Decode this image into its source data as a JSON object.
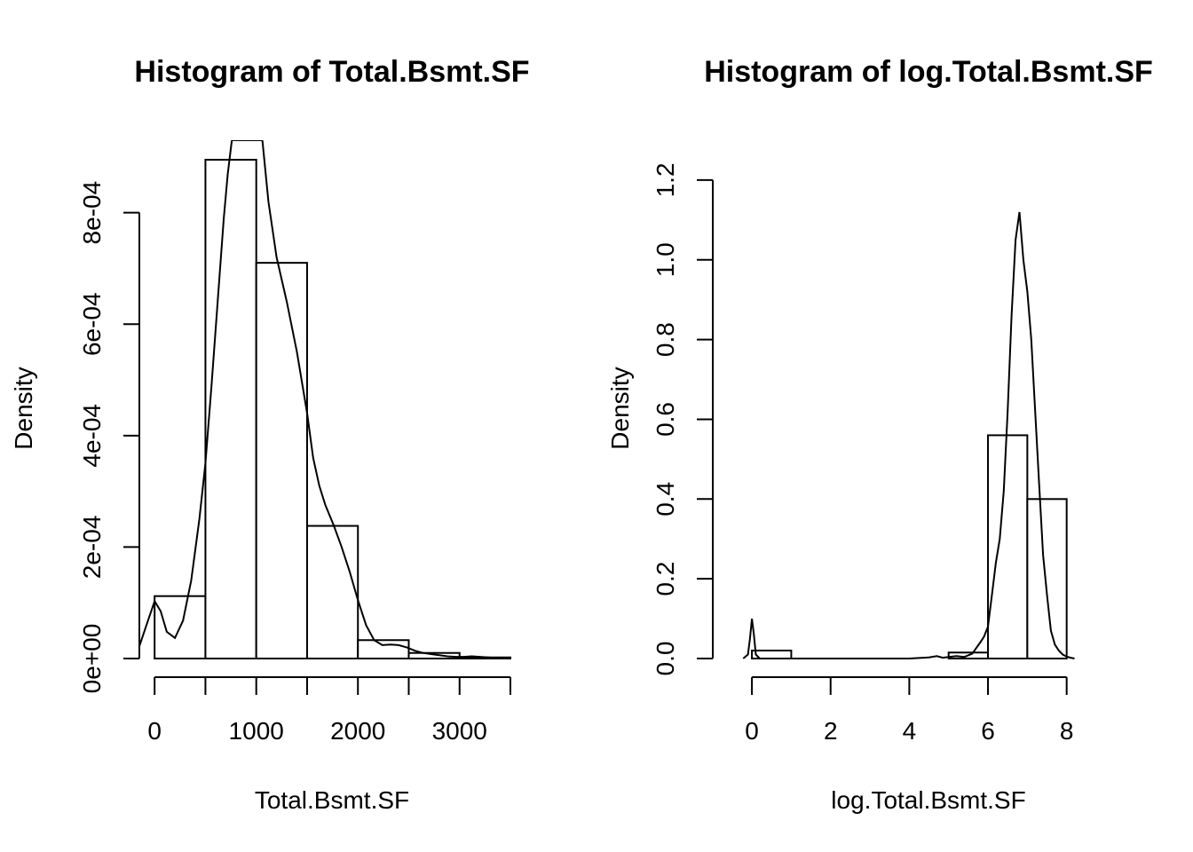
{
  "chart_data": [
    {
      "type": "bar",
      "title": "Histogram of Total.Bsmt.SF",
      "xlabel": "Total.Bsmt.SF",
      "ylabel": "Density",
      "xlim": [
        -150,
        3500
      ],
      "ylim": [
        0,
        0.00093
      ],
      "x_ticks": [
        0,
        1000,
        2000,
        3000,
        3500
      ],
      "x_tick_labels": [
        "0",
        "1000",
        "2000",
        "3000",
        ""
      ],
      "x_minor_ticks": [
        500,
        1500,
        2500
      ],
      "y_ticks": [
        0,
        0.0002,
        0.0004,
        0.0006,
        0.0008
      ],
      "y_tick_labels": [
        "0e+00",
        "2e-04",
        "4e-04",
        "6e-04",
        "8e-04"
      ],
      "bins": [
        {
          "x0": 0,
          "x1": 500,
          "density": 0.000112
        },
        {
          "x0": 500,
          "x1": 1000,
          "density": 0.000895
        },
        {
          "x0": 1000,
          "x1": 1500,
          "density": 0.00071
        },
        {
          "x0": 1500,
          "x1": 2000,
          "density": 0.000238
        },
        {
          "x0": 2000,
          "x1": 2500,
          "density": 3.3e-05
        },
        {
          "x0": 2500,
          "x1": 3000,
          "density": 1e-05
        },
        {
          "x0": 3000,
          "x1": 3500,
          "density": 2e-06
        }
      ],
      "density_curve": {
        "x": [
          -150,
          -80,
          0,
          60,
          120,
          200,
          280,
          360,
          440,
          500,
          560,
          620,
          680,
          720,
          760,
          1060,
          1120,
          1200,
          1300,
          1400,
          1500,
          1560,
          1620,
          1680,
          1760,
          1840,
          1920,
          2000,
          2080,
          2160,
          2240,
          2320,
          2400,
          2480,
          2560,
          2640,
          2720,
          2800,
          2880,
          2960,
          3040,
          3120,
          3200,
          3280,
          3360,
          3440,
          3500
        ],
        "y": [
          2.2e-05,
          6e-05,
          0.000103,
          8.5e-05,
          4.8e-05,
          3.7e-05,
          6.8e-05,
          0.00014,
          0.00025,
          0.00035,
          0.00049,
          0.00064,
          0.00079,
          0.00087,
          0.00093,
          0.00093,
          0.00082,
          0.00072,
          0.00064,
          0.00055,
          0.00044,
          0.00036,
          0.00031,
          0.000275,
          0.00024,
          0.0002,
          0.000155,
          0.000105,
          6e-05,
          3.3e-05,
          2.4e-05,
          2.5e-05,
          2.4e-05,
          2e-05,
          1.4e-05,
          1e-05,
          8e-06,
          6e-06,
          4e-06,
          3e-06,
          3e-06,
          4e-06,
          3e-06,
          2e-06,
          1e-06,
          1e-06,
          1e-06
        ]
      }
    },
    {
      "type": "bar",
      "title": "Histogram of log.Total.Bsmt.SF",
      "xlabel": "log.Total.Bsmt.SF",
      "ylabel": "Density",
      "xlim": [
        -0.25,
        9.0
      ],
      "ylim": [
        0,
        1.3
      ],
      "x_ticks": [
        0,
        2,
        4,
        6,
        8
      ],
      "x_tick_labels": [
        "0",
        "2",
        "4",
        "6",
        "8"
      ],
      "x_minor_ticks": [],
      "y_ticks": [
        0,
        0.2,
        0.4,
        0.6,
        0.8,
        1.0,
        1.2
      ],
      "y_tick_labels": [
        "0.0",
        "0.2",
        "0.4",
        "0.6",
        "0.8",
        "1.0",
        "1.2"
      ],
      "bins": [
        {
          "x0": 0,
          "x1": 1,
          "density": 0.02
        },
        {
          "x0": 1,
          "x1": 2,
          "density": 0
        },
        {
          "x0": 2,
          "x1": 3,
          "density": 0
        },
        {
          "x0": 3,
          "x1": 4,
          "density": 0
        },
        {
          "x0": 4,
          "x1": 5,
          "density": 0
        },
        {
          "x0": 5,
          "x1": 6,
          "density": 0.015
        },
        {
          "x0": 6,
          "x1": 7,
          "density": 0.56
        },
        {
          "x0": 7,
          "x1": 8,
          "density": 0.4
        }
      ],
      "density_curve": {
        "x": [
          -0.22,
          -0.1,
          -0.05,
          0,
          0.05,
          0.1,
          0.2,
          0.5,
          1,
          2,
          3,
          4,
          4.5,
          4.7,
          4.85,
          5,
          5.2,
          5.4,
          5.6,
          5.8,
          5.9,
          6.0,
          6.1,
          6.2,
          6.3,
          6.4,
          6.5,
          6.6,
          6.7,
          6.8,
          6.9,
          7.0,
          7.1,
          7.2,
          7.3,
          7.4,
          7.5,
          7.6,
          7.7,
          7.8,
          7.9,
          8.0,
          8.1,
          8.2
        ],
        "y": [
          0,
          0.01,
          0.05,
          0.1,
          0.06,
          0.01,
          0,
          0,
          0,
          0,
          0,
          0,
          0.003,
          0.006,
          0.002,
          0.004,
          0.006,
          0.004,
          0.012,
          0.04,
          0.055,
          0.08,
          0.16,
          0.24,
          0.3,
          0.42,
          0.62,
          0.86,
          1.05,
          1.12,
          1.0,
          0.92,
          0.8,
          0.62,
          0.44,
          0.26,
          0.16,
          0.07,
          0.035,
          0.02,
          0.01,
          0.005,
          0.002,
          0
        ]
      }
    }
  ]
}
